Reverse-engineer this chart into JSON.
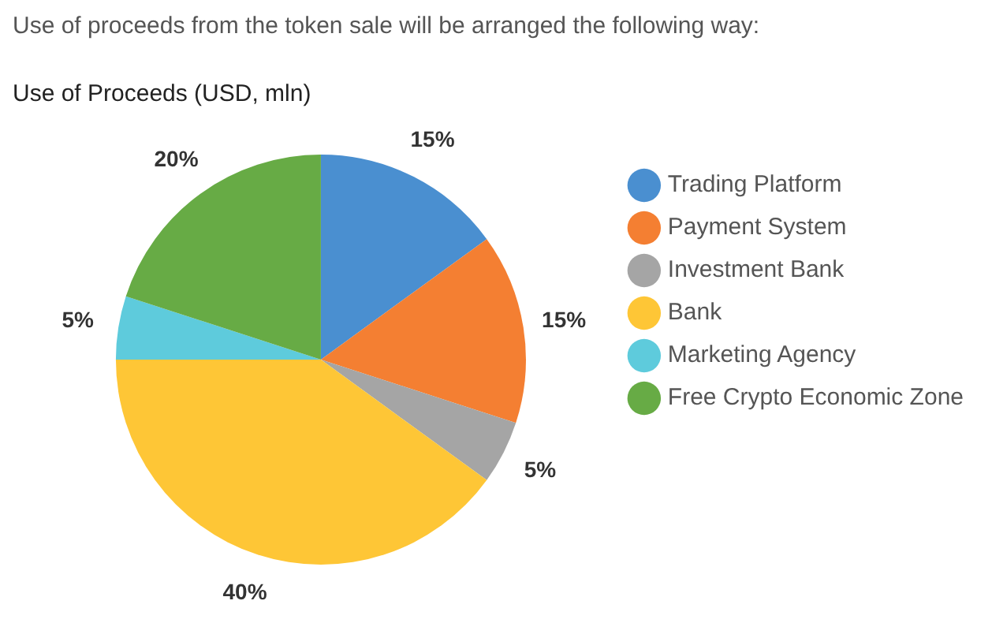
{
  "chart_data": {
    "type": "pie",
    "subtitle": "Use of proceeds from the token sale will be arranged the following way:",
    "title": "Use of Proceeds (USD, mln)",
    "categories": [
      "Trading Platform",
      "Payment System",
      "Investment Bank",
      "Bank",
      "Marketing Agency",
      "Free Crypto Economic Zone"
    ],
    "values": [
      15,
      15,
      5,
      40,
      5,
      20
    ],
    "colors": [
      "#4a8fd0",
      "#f47f32",
      "#a5a5a5",
      "#fec636",
      "#5ecbdc",
      "#67ab45"
    ],
    "value_labels": [
      "15%",
      "15%",
      "5%",
      "40%",
      "5%",
      "20%"
    ],
    "legend": "right"
  }
}
